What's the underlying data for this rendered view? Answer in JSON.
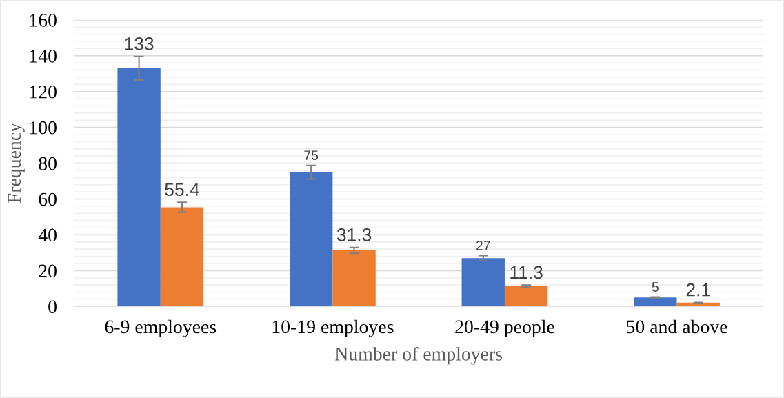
{
  "chart_data": {
    "type": "bar",
    "xlabel": "Number of employers",
    "ylabel": "Frequency",
    "categories": [
      "6-9 employees",
      "10-19 employes",
      "20-49 people",
      "50 and above"
    ],
    "series": [
      {
        "color": "#4472c4",
        "values": [
          133,
          75,
          27,
          5
        ],
        "errors": [
          6.6,
          3.8,
          1.4,
          0.25
        ]
      },
      {
        "color": "#ed7d31",
        "values": [
          55.4,
          31.3,
          11.3,
          2.1
        ],
        "errors": [
          2.8,
          1.6,
          0.6,
          0.1
        ]
      }
    ],
    "ylim": [
      0,
      160
    ],
    "yticks": [
      0,
      {
        "value": 4,
        "label": null
      },
      {
        "value": 8,
        "label": null
      },
      {
        "value": 12,
        "label": null
      },
      {
        "value": 16,
        "label": null
      },
      20,
      {
        "value": 24,
        "label": null
      },
      {
        "value": 28,
        "label": null
      },
      {
        "value": 32,
        "label": null
      },
      {
        "value": 36,
        "label": null
      },
      40,
      {
        "value": 44,
        "label": null
      },
      {
        "value": 48,
        "label": null
      },
      {
        "value": 52,
        "label": null
      },
      {
        "value": 56,
        "label": null
      },
      60,
      {
        "value": 64,
        "label": null
      },
      {
        "value": 68,
        "label": null
      },
      {
        "value": 72,
        "label": null
      },
      {
        "value": 76,
        "label": null
      },
      80,
      {
        "value": 84,
        "label": null
      },
      {
        "value": 88,
        "label": null
      },
      {
        "value": 92,
        "label": null
      },
      {
        "value": 96,
        "label": null
      },
      100,
      {
        "value": 104,
        "label": null
      },
      {
        "value": 108,
        "label": null
      },
      {
        "value": 112,
        "label": null
      },
      {
        "value": 116,
        "label": null
      },
      120,
      {
        "value": 124,
        "label": null
      },
      {
        "value": 128,
        "label": null
      },
      {
        "value": 132,
        "label": null
      },
      {
        "value": 136,
        "label": null
      },
      140,
      {
        "value": 144,
        "label": null
      },
      {
        "value": 148,
        "label": null
      },
      {
        "value": 152,
        "label": null
      },
      {
        "value": 156,
        "label": null
      },
      160
    ],
    "grid": "y",
    "data_labels": true
  }
}
